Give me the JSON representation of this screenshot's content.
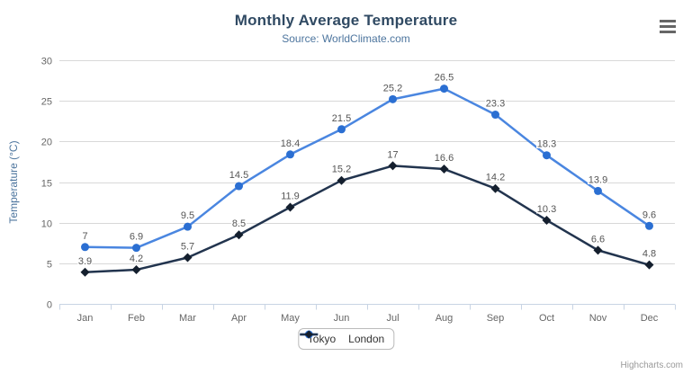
{
  "chart": {
    "title": "Monthly Average Temperature",
    "subtitle": "Source: WorldClimate.com",
    "credit": "Highcharts.com"
  },
  "chart_data": {
    "type": "line",
    "title": "Monthly Average Temperature",
    "subtitle": "Source: WorldClimate.com",
    "categories": [
      "Jan",
      "Feb",
      "Mar",
      "Apr",
      "May",
      "Jun",
      "Jul",
      "Aug",
      "Sep",
      "Oct",
      "Nov",
      "Dec"
    ],
    "series": [
      {
        "name": "Tokyo",
        "marker": "circle",
        "line_color": "#4a86e0",
        "marker_color": "#2b6fd2",
        "values": [
          7,
          6.9,
          9.5,
          14.5,
          18.4,
          21.5,
          25.2,
          26.5,
          23.3,
          18.3,
          13.9,
          9.6
        ]
      },
      {
        "name": "London",
        "marker": "diamond",
        "line_color": "#22344e",
        "marker_color": "#141f2e",
        "values": [
          3.9,
          4.2,
          5.7,
          8.5,
          11.9,
          15.2,
          17,
          16.6,
          14.2,
          10.3,
          6.6,
          4.8
        ]
      }
    ],
    "xlabel": "",
    "ylabel": "Temperature (°C)",
    "ylim": [
      0,
      30
    ],
    "ytick_interval": 5,
    "grid": true,
    "legend_position": "bottom-center",
    "data_labels": true
  },
  "colors": {
    "title": "#304a63",
    "subtitle": "#4d759e",
    "axis_label": "#666666",
    "axis_title": "#4d759e",
    "grid_line": "#d8d8d8",
    "axis_line": "#c8d4e4",
    "data_label": "#555555",
    "legend_text": "#333333",
    "legend_border": "#bbbbbb",
    "credit": "#999999",
    "menu_icon": "#666666",
    "background": "#ffffff"
  }
}
